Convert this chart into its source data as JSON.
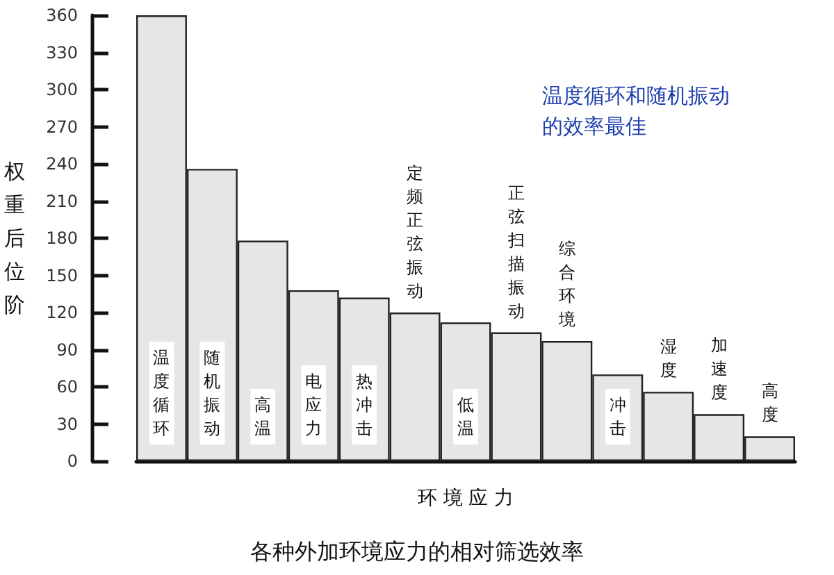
{
  "chart_data": {
    "type": "bar",
    "title": "各种外加环境应力的相对筛选效率",
    "xlabel": "环 境 应 力",
    "ylabel": "权重后位阶",
    "annotations": [
      "温度循环和随机振动的效率最佳"
    ],
    "categories": [
      "温度循环",
      "随机振动",
      "高温",
      "电应力",
      "热冲击",
      "定频正弦振动",
      "低温",
      "正弦扫描振动",
      "综合环境",
      "冲击",
      "湿度",
      "加速度",
      "高度"
    ],
    "values": [
      360,
      236,
      178,
      138,
      132,
      120,
      112,
      104,
      97,
      70,
      56,
      38,
      20
    ],
    "color": "#e6e6e6",
    "ylim": [
      0,
      360
    ],
    "yticks": [
      0,
      30,
      60,
      90,
      120,
      150,
      180,
      210,
      240,
      270,
      300,
      330,
      360
    ],
    "grid": false
  }
}
